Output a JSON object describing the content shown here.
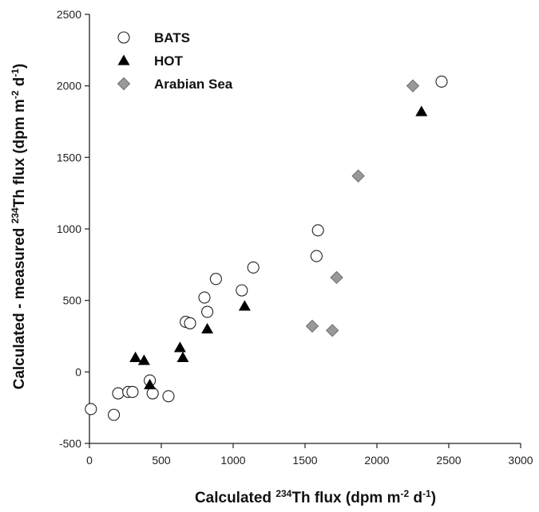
{
  "chart_data": {
    "type": "scatter",
    "xlabel": {
      "pre": "Calculated ",
      "sup1": "234",
      "mid": "Th flux (dpm m",
      "sup2": "-2",
      "mid2": " d",
      "sup3": "-1",
      "post": ")"
    },
    "ylabel": {
      "pre": "Calculated - measured ",
      "sup1": "234",
      "mid": "Th flux (dpm m",
      "sup2": "-2",
      "mid2": " d",
      "sup3": "-1",
      "post": ")"
    },
    "xlim": [
      0,
      3000
    ],
    "ylim": [
      -500,
      2500
    ],
    "xticks": [
      0,
      500,
      1000,
      1500,
      2000,
      2500,
      3000
    ],
    "yticks": [
      -500,
      0,
      500,
      1000,
      1500,
      2000,
      2500
    ],
    "grid": false,
    "legend_position": "top-left",
    "series": [
      {
        "name": "BATS",
        "marker": "open-circle",
        "color": "#ffffff",
        "x": [
          10,
          170,
          200,
          270,
          300,
          420,
          440,
          550,
          670,
          700,
          800,
          820,
          880,
          1060,
          1140,
          1580,
          1590,
          2450
        ],
        "y": [
          -260,
          -300,
          -150,
          -140,
          -140,
          -60,
          -150,
          -170,
          350,
          340,
          520,
          420,
          650,
          570,
          730,
          810,
          990,
          2030
        ]
      },
      {
        "name": "HOT",
        "marker": "filled-triangle",
        "color": "#000000",
        "x": [
          320,
          380,
          420,
          630,
          650,
          820,
          1080,
          2310
        ],
        "y": [
          100,
          80,
          -90,
          170,
          100,
          300,
          460,
          1820
        ]
      },
      {
        "name": "Arabian Sea",
        "marker": "gray-diamond",
        "color": "#999999",
        "x": [
          1550,
          1690,
          1720,
          1870,
          2250
        ],
        "y": [
          320,
          290,
          660,
          1370,
          2000
        ]
      }
    ]
  }
}
